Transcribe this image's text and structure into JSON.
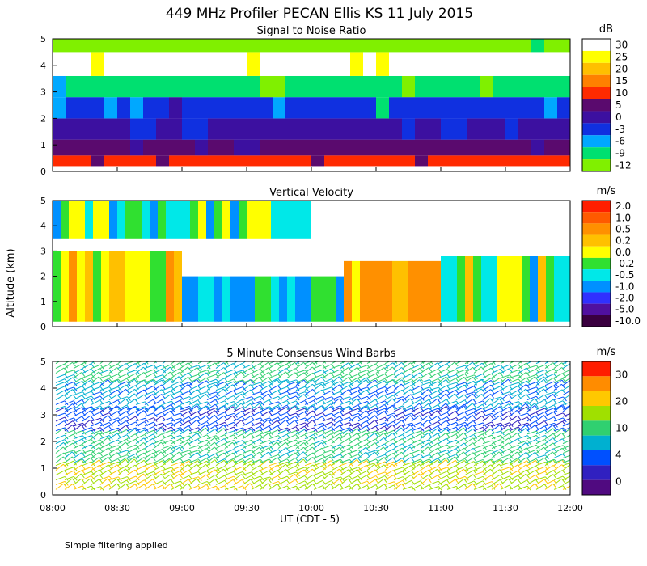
{
  "title": "449 MHz Profiler PECAN Ellis KS 11 July 2015",
  "footnote": "Simple filtering applied",
  "shared_y_label": "Altitude (km)",
  "x_label": "UT  (CDT - 5)",
  "x_ticks": [
    "08:00",
    "08:30",
    "09:00",
    "09:30",
    "10:00",
    "10:30",
    "11:00",
    "11:30",
    "12:00"
  ],
  "chart_data": [
    {
      "type": "heatmap",
      "title": "Signal to Noise Ratio",
      "units": "dB",
      "ylim": [
        0,
        5
      ],
      "y_ticks": [
        "0",
        "1",
        "2",
        "3",
        "4",
        "5"
      ],
      "colorbar": {
        "labels": [
          "30",
          "25",
          "20",
          "15",
          "10",
          "5",
          "0",
          "-3",
          "-6",
          "-9",
          "-12"
        ],
        "colors": [
          "#ffffff",
          "#ffff00",
          "#ffbf00",
          "#ff8000",
          "#ff2a00",
          "#5a0a6e",
          "#3c10a0",
          "#1030e0",
          "#00a8ff",
          "#00e070",
          "#80f000"
        ]
      },
      "layers": [
        {
          "from_km": 0.2,
          "to_km": 0.6,
          "value_db": 10
        },
        {
          "from_km": 0.6,
          "to_km": 1.2,
          "value_db": 5
        },
        {
          "from_km": 1.2,
          "to_km": 2.0,
          "value_db": 0
        },
        {
          "from_km": 2.0,
          "to_km": 2.8,
          "value_db": -3
        },
        {
          "from_km": 2.8,
          "to_km": 3.6,
          "value_db": -9
        },
        {
          "from_km": 3.6,
          "to_km": 4.5,
          "value_db": 30
        },
        {
          "from_km": 4.5,
          "to_km": 5.0,
          "value_db": -12
        }
      ]
    },
    {
      "type": "heatmap",
      "title": "Vertical Velocity",
      "units": "m/s",
      "ylim": [
        0,
        5
      ],
      "y_ticks": [
        "0",
        "1",
        "2",
        "3",
        "4",
        "5"
      ],
      "colorbar": {
        "labels": [
          "2.0",
          "1.0",
          "0.5",
          "0.2",
          "0.0",
          "-0.2",
          "-0.5",
          "-1.0",
          "-2.0",
          "-5.0",
          "-10.0"
        ],
        "colors": [
          "#ff1e00",
          "#ff5a00",
          "#ff9000",
          "#ffc000",
          "#ffff00",
          "#30e030",
          "#00e8e8",
          "#0090ff",
          "#3030ff",
          "#5010a0",
          "#3a0040"
        ]
      },
      "regions": [
        {
          "x_start": "08:00",
          "x_end": "09:00",
          "from_km": 0.2,
          "to_km": 3.0,
          "value": 0.2
        },
        {
          "x_start": "09:00",
          "x_end": "10:15",
          "from_km": 0.2,
          "to_km": 2.0,
          "value": -0.5
        },
        {
          "x_start": "10:15",
          "x_end": "11:00",
          "from_km": 0.2,
          "to_km": 2.6,
          "value": 0.5
        },
        {
          "x_start": "11:00",
          "x_end": "12:00",
          "from_km": 0.2,
          "to_km": 2.8,
          "value": -0.2
        },
        {
          "x_start": "08:00",
          "x_end": "10:00",
          "from_km": 3.5,
          "to_km": 5.0,
          "value": -0.2
        }
      ]
    },
    {
      "type": "scatter",
      "title": "5 Minute Consensus Wind Barbs",
      "units": "m/s",
      "ylim": [
        0,
        5
      ],
      "y_ticks": [
        "0",
        "1",
        "2",
        "3",
        "4",
        "5"
      ],
      "colorbar": {
        "labels": [
          "30",
          "20",
          "10",
          "4",
          "0"
        ],
        "colors": [
          "#ff1e00",
          "#ff8c00",
          "#ffc800",
          "#a0e000",
          "#30d070",
          "#00b0d0",
          "#0050ff",
          "#3020c0",
          "#500a80"
        ]
      },
      "wind_layers": [
        {
          "from_km": 0.2,
          "to_km": 1.2,
          "speed": 20
        },
        {
          "from_km": 1.2,
          "to_km": 2.4,
          "speed": 14
        },
        {
          "from_km": 2.4,
          "to_km": 3.2,
          "speed": 6
        },
        {
          "from_km": 3.2,
          "to_km": 4.2,
          "speed": 10
        },
        {
          "from_km": 4.2,
          "to_km": 5.0,
          "speed": 14
        }
      ]
    }
  ]
}
